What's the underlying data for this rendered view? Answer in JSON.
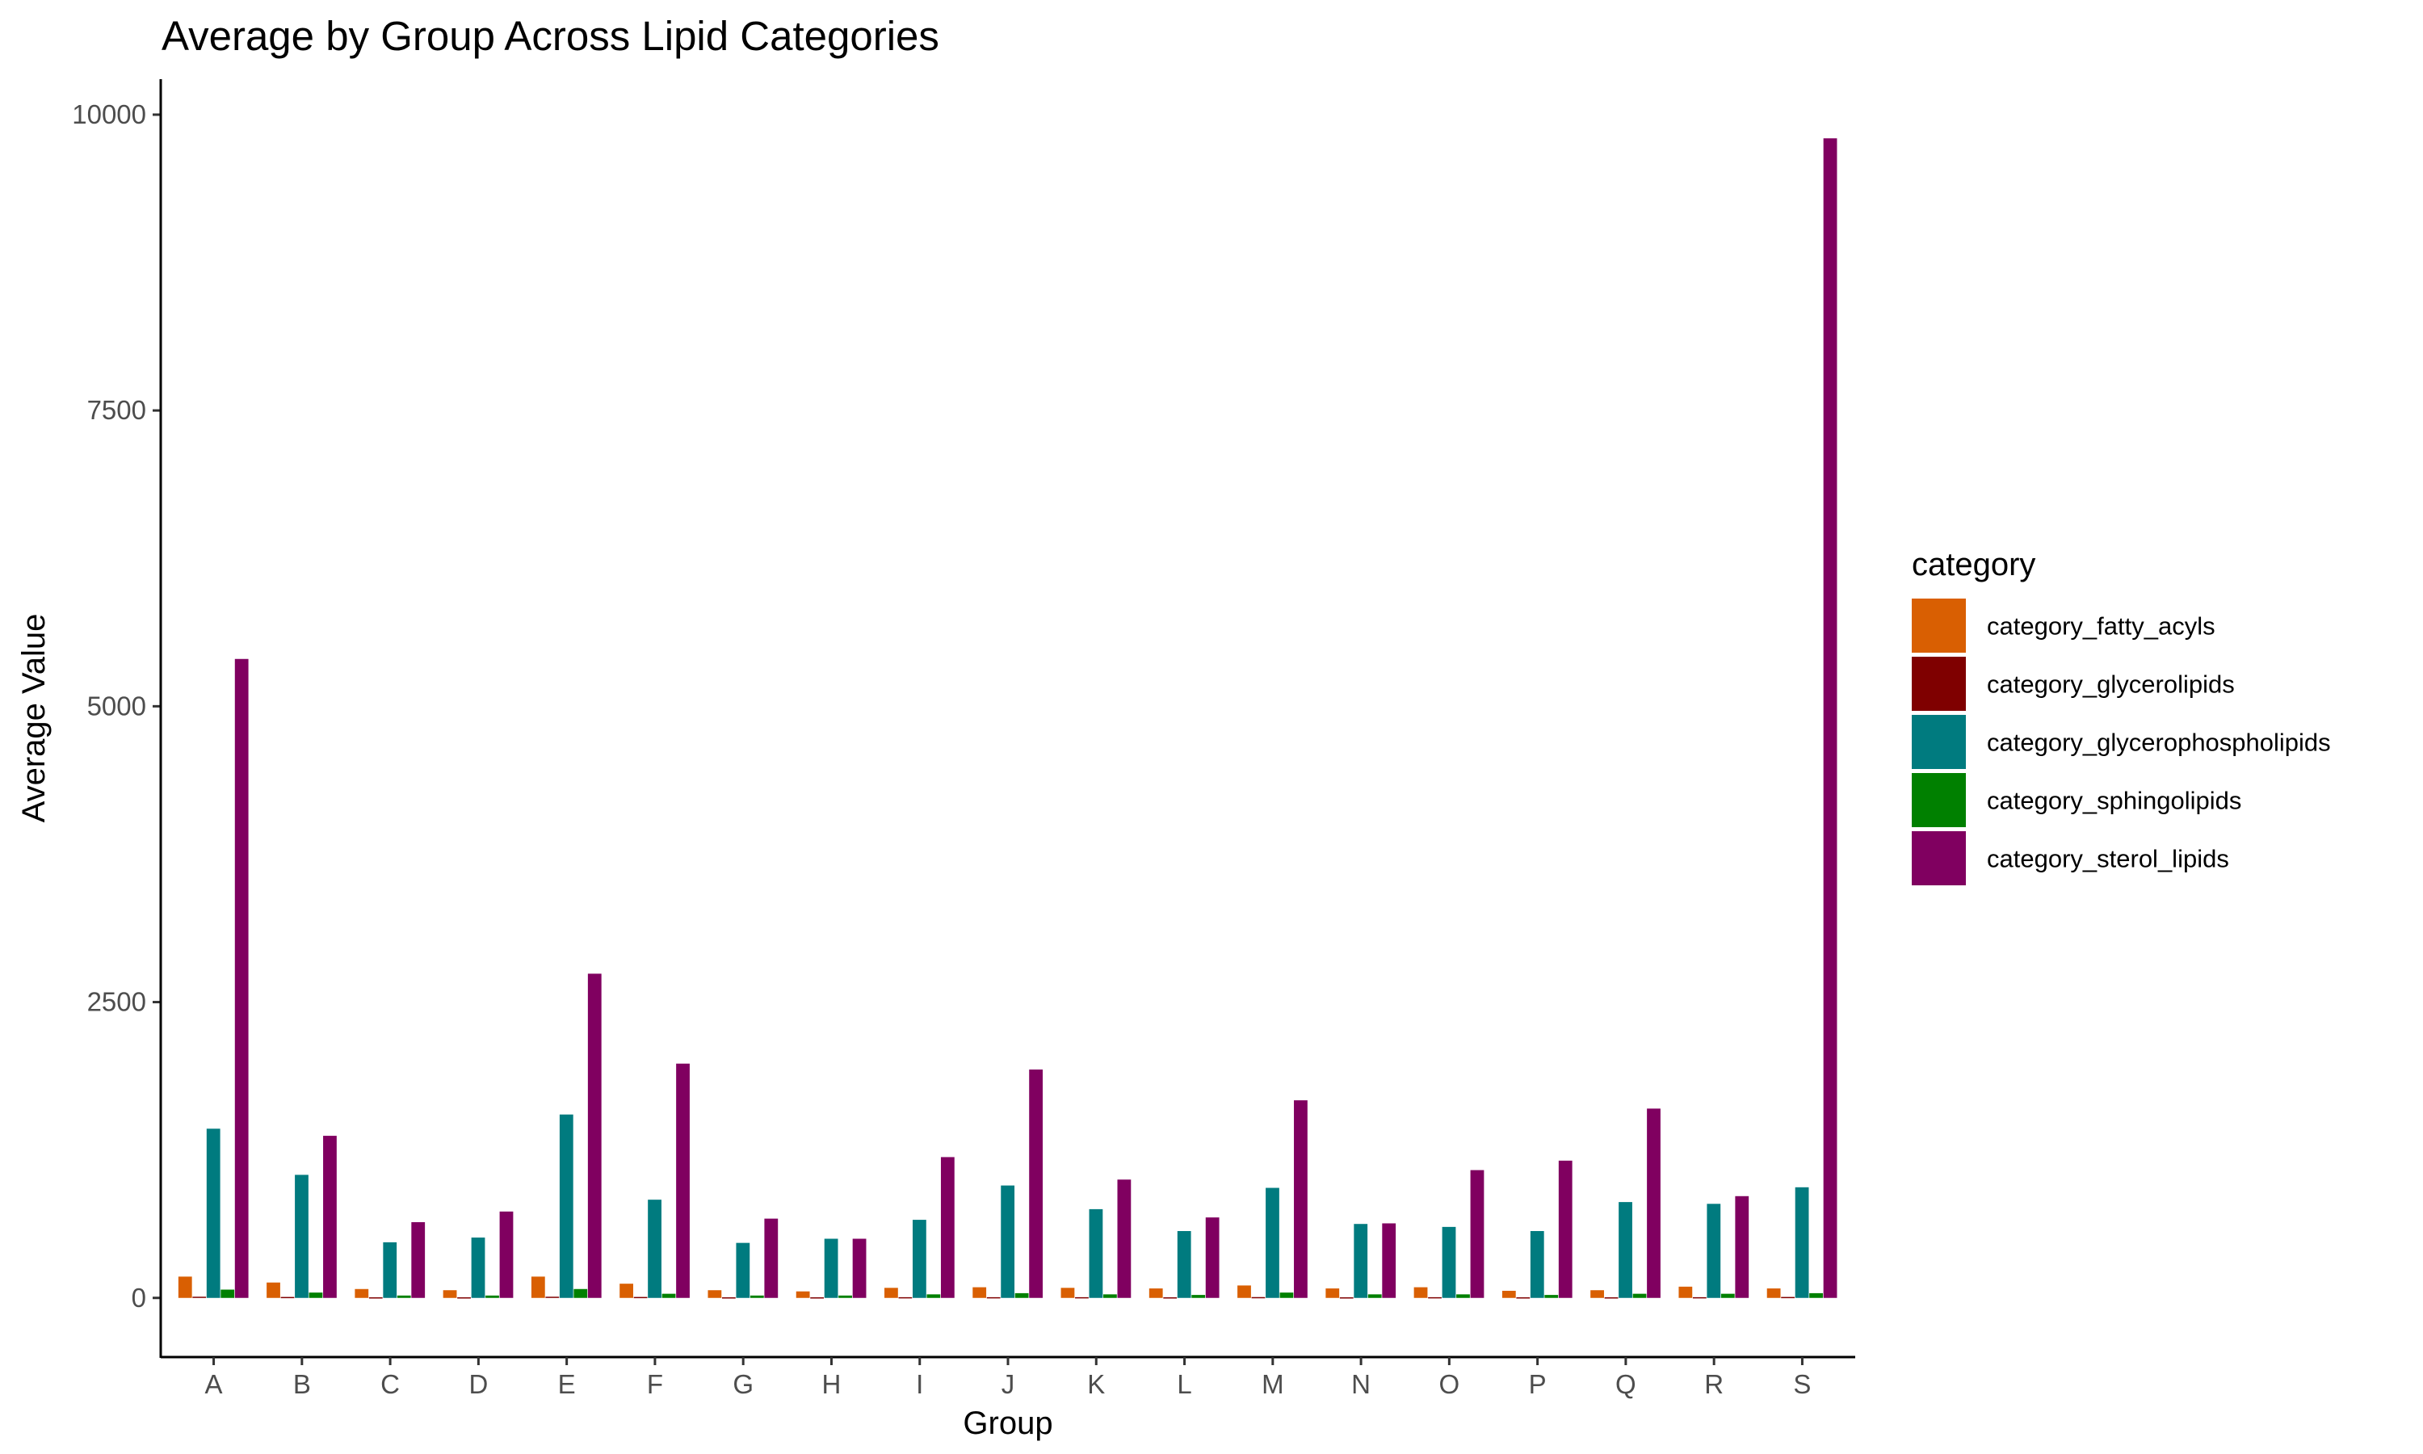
{
  "chart_data": {
    "type": "bar",
    "title": "Average by Group Across Lipid Categories",
    "xlabel": "Group",
    "ylabel": "Average Value",
    "ylim": [
      -500,
      10300
    ],
    "yticks": [
      0,
      2500,
      5000,
      7500,
      10000
    ],
    "grid": false,
    "legend": {
      "title": "category",
      "position": "right"
    },
    "categories": [
      "A",
      "B",
      "C",
      "D",
      "E",
      "F",
      "G",
      "H",
      "I",
      "J",
      "K",
      "L",
      "M",
      "N",
      "O",
      "P",
      "Q",
      "R",
      "S"
    ],
    "series": [
      {
        "name": "category_fatty_acyls",
        "color": "#D95F02",
        "values": [
          180,
          130,
          75,
          65,
          180,
          120,
          65,
          55,
          85,
          90,
          85,
          80,
          105,
          80,
          90,
          60,
          65,
          95,
          80
        ]
      },
      {
        "name": "category_glycerolipids",
        "color": "#7F0000",
        "values": [
          10,
          8,
          5,
          5,
          10,
          8,
          5,
          5,
          6,
          6,
          6,
          5,
          7,
          5,
          6,
          5,
          5,
          6,
          8
        ]
      },
      {
        "name": "category_glycerophospholipids",
        "color": "#007B7F",
        "values": [
          1430,
          1040,
          470,
          510,
          1550,
          830,
          465,
          500,
          660,
          950,
          750,
          565,
          930,
          625,
          600,
          565,
          810,
          795,
          935
        ]
      },
      {
        "name": "category_sphingolipids",
        "color": "#008000",
        "values": [
          70,
          45,
          20,
          20,
          75,
          35,
          20,
          20,
          30,
          40,
          30,
          25,
          45,
          30,
          30,
          25,
          35,
          35,
          40
        ]
      },
      {
        "name": "category_sterol_lipids",
        "color": "#800060",
        "values": [
          5400,
          1370,
          640,
          730,
          2740,
          1980,
          670,
          500,
          1190,
          1930,
          1000,
          680,
          1670,
          630,
          1080,
          1160,
          1600,
          860,
          9800
        ]
      }
    ]
  }
}
